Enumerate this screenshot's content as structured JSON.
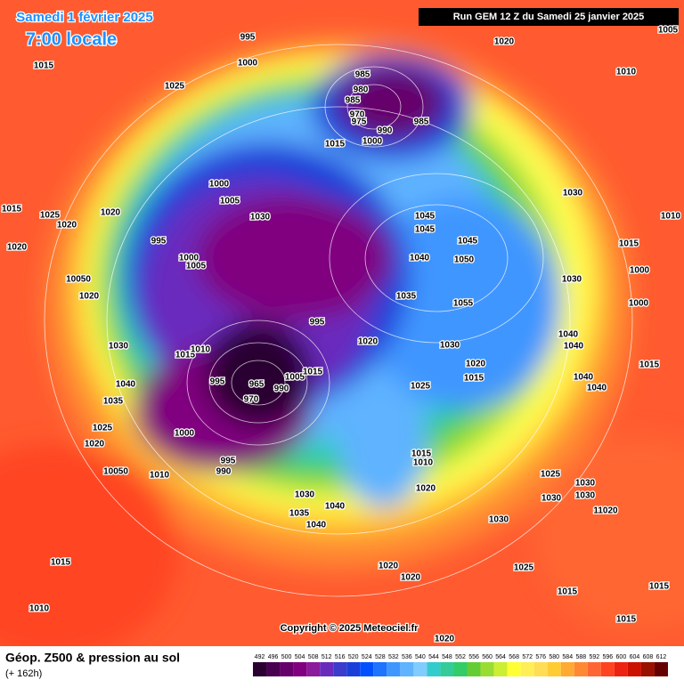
{
  "header": {
    "date": "Samedi 1 février 2025",
    "time": "7:00 locale",
    "run": "Run GEM 12 Z du Samedi 25 janvier 2025"
  },
  "copyright": "Copyright © 2025 Meteociel.fr",
  "footer": {
    "title": "Géop. Z500 & pression au sol",
    "lead": "(+ 162h)"
  },
  "colorbar": {
    "values": [
      492,
      496,
      500,
      504,
      508,
      512,
      516,
      520,
      524,
      528,
      532,
      536,
      540,
      544,
      548,
      552,
      556,
      560,
      564,
      568,
      572,
      576,
      580,
      584,
      588,
      592,
      596,
      600,
      604,
      608,
      612
    ],
    "colors": [
      "#2a0030",
      "#48004f",
      "#66006b",
      "#80007f",
      "#8c1a9c",
      "#6a2bbd",
      "#3b3bcc",
      "#1a3fd9",
      "#0050ff",
      "#1e73ff",
      "#3f96ff",
      "#5fb3ff",
      "#80ccff",
      "#33cccc",
      "#33cc99",
      "#33cc66",
      "#66cc33",
      "#99dd33",
      "#ccee33",
      "#ffff33",
      "#ffee55",
      "#ffdd55",
      "#ffcc33",
      "#ffaa33",
      "#ff8833",
      "#ff6633",
      "#ff4422",
      "#ee2211",
      "#cc1100",
      "#991100",
      "#660000"
    ]
  },
  "isobars": [
    "995",
    "1000",
    "1025",
    "1015",
    "1020",
    "1010",
    "1005",
    "985",
    "980",
    "985",
    "970",
    "975",
    "990",
    "1000",
    "985",
    "1015",
    "1000",
    "1005",
    "1030",
    "1015",
    "1025",
    "1020",
    "1020",
    "995",
    "1020",
    "1000",
    "1005",
    "10050",
    "1020",
    "1045",
    "1045",
    "1045",
    "1040",
    "1050",
    "1035",
    "1055",
    "995",
    "1020",
    "1030",
    "1020",
    "1015",
    "1025",
    "1030",
    "1015",
    "1010",
    "995",
    "965",
    "970",
    "990",
    "1005",
    "1015",
    "1040",
    "1035",
    "1025",
    "1000",
    "1020",
    "995",
    "990",
    "10050",
    "1010",
    "1015",
    "1010",
    "1020",
    "1030",
    "1040",
    "1035",
    "1040",
    "1030",
    "1025",
    "1030",
    "1030",
    "1030",
    "11020",
    "1015",
    "1010",
    "1020",
    "1020",
    "1025",
    "1015",
    "1015",
    "1015",
    "1020",
    "1030",
    "1010",
    "1015",
    "1000",
    "1030",
    "1000",
    "1040",
    "1040",
    "1015",
    "1040",
    "1040"
  ]
}
